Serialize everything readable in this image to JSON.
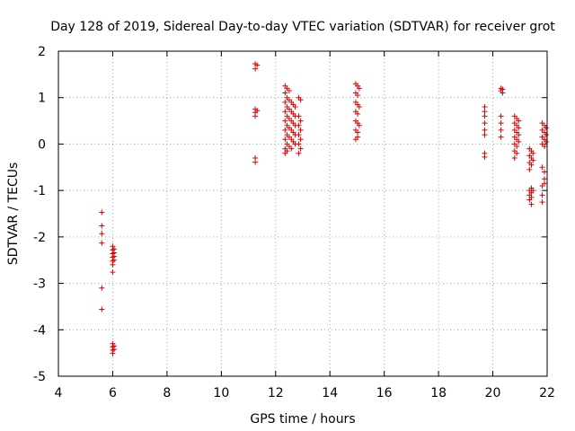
{
  "chart_data": {
    "type": "scatter",
    "title": "Day 128 of 2019, Sidereal Day-to-day VTEC variation (SDTVAR) for receiver grot",
    "xlabel": "GPS time / hours",
    "ylabel": "SDTVAR / TECUs",
    "xlim": [
      4,
      22
    ],
    "ylim": [
      -5,
      2
    ],
    "xticks": [
      4,
      6,
      8,
      10,
      12,
      14,
      16,
      18,
      20,
      22
    ],
    "yticks": [
      -5,
      -4,
      -3,
      -2,
      -1,
      0,
      1,
      2
    ],
    "xtick_labels": [
      "4",
      "6",
      "8",
      "10",
      "12",
      "14",
      "16",
      "18",
      "20",
      "22"
    ],
    "ytick_labels": [
      "-5",
      "-4",
      "-3",
      "-2",
      "-1",
      "0",
      "1",
      "2"
    ],
    "grid": true,
    "marker": "+",
    "color": "#e00000",
    "series": [
      {
        "name": "SDTVAR",
        "points": [
          [
            5.6,
            -1.47
          ],
          [
            5.6,
            -1.76
          ],
          [
            5.6,
            -1.93
          ],
          [
            5.6,
            -2.13
          ],
          [
            5.6,
            -3.1
          ],
          [
            5.6,
            -3.56
          ],
          [
            6.0,
            -2.2
          ],
          [
            6.0,
            -2.28
          ],
          [
            6.0,
            -2.36
          ],
          [
            6.0,
            -2.44
          ],
          [
            6.0,
            -2.52
          ],
          [
            6.0,
            -2.6
          ],
          [
            6.0,
            -2.76
          ],
          [
            6.05,
            -2.26
          ],
          [
            6.05,
            -2.34
          ],
          [
            6.05,
            -2.42
          ],
          [
            6.05,
            -2.5
          ],
          [
            6.0,
            -4.3
          ],
          [
            6.0,
            -4.37
          ],
          [
            6.0,
            -4.44
          ],
          [
            6.0,
            -4.51
          ],
          [
            6.05,
            -4.35
          ],
          [
            6.05,
            -4.42
          ],
          [
            11.25,
            1.73
          ],
          [
            11.25,
            1.62
          ],
          [
            11.25,
            0.75
          ],
          [
            11.25,
            0.68
          ],
          [
            11.25,
            0.6
          ],
          [
            11.25,
            -0.3
          ],
          [
            11.25,
            -0.39
          ],
          [
            11.32,
            1.7
          ],
          [
            11.32,
            0.72
          ],
          [
            12.35,
            1.25
          ],
          [
            12.35,
            1.1
          ],
          [
            12.35,
            0.9
          ],
          [
            12.35,
            0.7
          ],
          [
            12.35,
            0.5
          ],
          [
            12.35,
            0.3
          ],
          [
            12.35,
            0.1
          ],
          [
            12.35,
            -0.1
          ],
          [
            12.35,
            -0.2
          ],
          [
            12.42,
            1.2
          ],
          [
            12.42,
            1.0
          ],
          [
            12.42,
            0.8
          ],
          [
            12.42,
            0.6
          ],
          [
            12.42,
            0.4
          ],
          [
            12.42,
            0.2
          ],
          [
            12.42,
            0.0
          ],
          [
            12.42,
            -0.15
          ],
          [
            12.5,
            1.15
          ],
          [
            12.5,
            0.95
          ],
          [
            12.5,
            0.75
          ],
          [
            12.5,
            0.55
          ],
          [
            12.5,
            0.35
          ],
          [
            12.5,
            0.15
          ],
          [
            12.5,
            -0.05
          ],
          [
            12.58,
            0.9
          ],
          [
            12.58,
            0.7
          ],
          [
            12.58,
            0.5
          ],
          [
            12.58,
            0.3
          ],
          [
            12.58,
            0.1
          ],
          [
            12.58,
            -0.1
          ],
          [
            12.65,
            0.85
          ],
          [
            12.65,
            0.65
          ],
          [
            12.65,
            0.45
          ],
          [
            12.65,
            0.25
          ],
          [
            12.65,
            0.05
          ],
          [
            12.72,
            0.8
          ],
          [
            12.72,
            0.6
          ],
          [
            12.72,
            0.4
          ],
          [
            12.72,
            0.2
          ],
          [
            12.72,
            0.0
          ],
          [
            12.85,
            1.0
          ],
          [
            12.85,
            0.6
          ],
          [
            12.85,
            0.4
          ],
          [
            12.85,
            0.2
          ],
          [
            12.85,
            0.0
          ],
          [
            12.85,
            -0.2
          ],
          [
            12.92,
            0.95
          ],
          [
            12.92,
            0.5
          ],
          [
            12.92,
            0.3
          ],
          [
            12.92,
            0.1
          ],
          [
            12.92,
            -0.1
          ],
          [
            14.95,
            1.3
          ],
          [
            14.95,
            1.1
          ],
          [
            14.95,
            0.9
          ],
          [
            14.95,
            0.7
          ],
          [
            14.95,
            0.5
          ],
          [
            14.95,
            0.3
          ],
          [
            14.95,
            0.1
          ],
          [
            15.02,
            1.25
          ],
          [
            15.02,
            1.05
          ],
          [
            15.02,
            0.85
          ],
          [
            15.02,
            0.65
          ],
          [
            15.02,
            0.45
          ],
          [
            15.02,
            0.25
          ],
          [
            15.02,
            0.15
          ],
          [
            15.08,
            1.2
          ],
          [
            15.08,
            0.8
          ],
          [
            15.08,
            0.4
          ],
          [
            19.7,
            0.8
          ],
          [
            19.7,
            0.7
          ],
          [
            19.7,
            0.6
          ],
          [
            19.7,
            0.45
          ],
          [
            19.7,
            0.3
          ],
          [
            19.7,
            0.2
          ],
          [
            19.7,
            -0.2
          ],
          [
            19.7,
            -0.28
          ],
          [
            20.3,
            1.2
          ],
          [
            20.3,
            1.15
          ],
          [
            20.3,
            0.6
          ],
          [
            20.3,
            0.45
          ],
          [
            20.3,
            0.3
          ],
          [
            20.3,
            0.15
          ],
          [
            20.36,
            1.18
          ],
          [
            20.36,
            1.1
          ],
          [
            20.8,
            0.6
          ],
          [
            20.8,
            0.45
          ],
          [
            20.8,
            0.3
          ],
          [
            20.8,
            0.15
          ],
          [
            20.8,
            0.0
          ],
          [
            20.8,
            -0.15
          ],
          [
            20.8,
            -0.3
          ],
          [
            20.88,
            0.55
          ],
          [
            20.88,
            0.4
          ],
          [
            20.88,
            0.25
          ],
          [
            20.88,
            0.1
          ],
          [
            20.88,
            -0.05
          ],
          [
            20.88,
            -0.2
          ],
          [
            20.95,
            0.5
          ],
          [
            20.95,
            0.35
          ],
          [
            20.95,
            0.2
          ],
          [
            20.95,
            0.05
          ],
          [
            21.35,
            -0.1
          ],
          [
            21.35,
            -0.25
          ],
          [
            21.35,
            -0.4
          ],
          [
            21.35,
            -0.55
          ],
          [
            21.35,
            -1.0
          ],
          [
            21.35,
            -1.1
          ],
          [
            21.35,
            -1.2
          ],
          [
            21.42,
            -0.15
          ],
          [
            21.42,
            -0.3
          ],
          [
            21.42,
            -0.45
          ],
          [
            21.42,
            -0.95
          ],
          [
            21.42,
            -1.05
          ],
          [
            21.42,
            -1.15
          ],
          [
            21.42,
            -1.3
          ],
          [
            21.48,
            -0.2
          ],
          [
            21.48,
            -0.35
          ],
          [
            21.48,
            -1.0
          ],
          [
            21.82,
            0.45
          ],
          [
            21.82,
            0.3
          ],
          [
            21.82,
            0.15
          ],
          [
            21.82,
            0.0
          ],
          [
            21.82,
            -0.5
          ],
          [
            21.82,
            -0.9
          ],
          [
            21.82,
            -1.1
          ],
          [
            21.82,
            -1.25
          ],
          [
            21.9,
            0.4
          ],
          [
            21.9,
            0.25
          ],
          [
            21.9,
            0.1
          ],
          [
            21.9,
            -0.05
          ],
          [
            21.9,
            -0.6
          ],
          [
            21.9,
            -0.75
          ],
          [
            21.9,
            -0.85
          ],
          [
            21.96,
            0.35
          ],
          [
            21.96,
            0.2
          ],
          [
            21.96,
            0.05
          ]
        ]
      }
    ]
  }
}
